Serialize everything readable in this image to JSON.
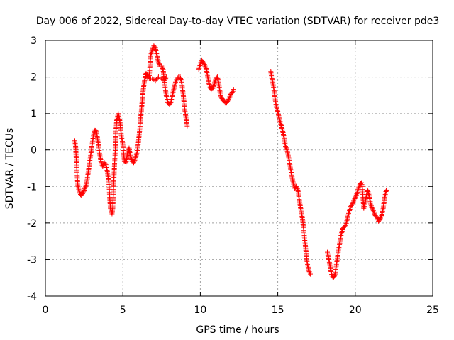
{
  "chart_data": {
    "type": "scatter",
    "title": "Day 006 of 2022, Sidereal Day-to-day VTEC variation (SDTVAR) for receiver pde3",
    "xlabel": "GPS time / hours",
    "ylabel": "SDTVAR / TECUs",
    "xlim": [
      0,
      25
    ],
    "ylim": [
      -4,
      3
    ],
    "xticks": [
      0,
      5,
      10,
      15,
      20,
      25
    ],
    "yticks": [
      -4,
      -3,
      -2,
      -1,
      0,
      1,
      2,
      3
    ],
    "xtick_labels": [
      "0",
      "5",
      "10",
      "15",
      "20",
      "25"
    ],
    "ytick_labels": [
      "-4",
      "-3",
      "-2",
      "-1",
      "0",
      "1",
      "2",
      "3"
    ],
    "grid": true,
    "marker": "+",
    "color": "#ff0000",
    "series": [
      {
        "name": "pde3",
        "segments": [
          [
            [
              1.9,
              0.25
            ],
            [
              1.95,
              0.1
            ],
            [
              2.0,
              -0.3
            ],
            [
              2.05,
              -0.7
            ],
            [
              2.1,
              -1.0
            ],
            [
              2.2,
              -1.15
            ],
            [
              2.3,
              -1.25
            ],
            [
              2.4,
              -1.2
            ],
            [
              2.5,
              -1.1
            ],
            [
              2.6,
              -1.0
            ],
            [
              2.7,
              -0.8
            ],
            [
              2.8,
              -0.5
            ],
            [
              2.9,
              -0.2
            ],
            [
              3.0,
              0.1
            ],
            [
              3.1,
              0.4
            ],
            [
              3.2,
              0.55
            ],
            [
              3.3,
              0.5
            ],
            [
              3.4,
              0.2
            ],
            [
              3.5,
              -0.1
            ],
            [
              3.6,
              -0.35
            ],
            [
              3.7,
              -0.45
            ],
            [
              3.8,
              -0.35
            ],
            [
              3.9,
              -0.4
            ],
            [
              4.0,
              -0.6
            ],
            [
              4.1,
              -0.9
            ],
            [
              4.15,
              -1.3
            ],
            [
              4.2,
              -1.6
            ],
            [
              4.3,
              -1.75
            ],
            [
              4.35,
              -1.6
            ],
            [
              4.4,
              -1.0
            ],
            [
              4.45,
              -0.5
            ],
            [
              4.5,
              -0.1
            ],
            [
              4.55,
              0.5
            ],
            [
              4.6,
              0.8
            ],
            [
              4.7,
              1.0
            ],
            [
              4.8,
              0.8
            ],
            [
              4.9,
              0.4
            ],
            [
              5.0,
              0.15
            ],
            [
              5.05,
              -0.1
            ],
            [
              5.1,
              -0.3
            ],
            [
              5.2,
              -0.35
            ],
            [
              5.3,
              -0.1
            ],
            [
              5.4,
              0.05
            ],
            [
              5.5,
              -0.2
            ],
            [
              5.6,
              -0.3
            ],
            [
              5.7,
              -0.35
            ],
            [
              5.8,
              -0.25
            ],
            [
              5.9,
              -0.1
            ],
            [
              6.0,
              0.2
            ],
            [
              6.1,
              0.6
            ],
            [
              6.2,
              1.1
            ],
            [
              6.3,
              1.6
            ],
            [
              6.4,
              1.9
            ],
            [
              6.5,
              2.1
            ],
            [
              6.6,
              2.05
            ],
            [
              6.7,
              2.0
            ],
            [
              6.75,
              2.3
            ],
            [
              6.8,
              2.6
            ],
            [
              6.9,
              2.75
            ],
            [
              7.0,
              2.85
            ],
            [
              7.1,
              2.8
            ],
            [
              7.2,
              2.6
            ],
            [
              7.3,
              2.4
            ],
            [
              7.4,
              2.3
            ],
            [
              7.5,
              2.3
            ],
            [
              7.6,
              2.2
            ],
            [
              7.7,
              1.8
            ],
            [
              7.8,
              1.5
            ],
            [
              7.9,
              1.3
            ],
            [
              8.0,
              1.25
            ],
            [
              8.1,
              1.3
            ],
            [
              8.2,
              1.5
            ],
            [
              8.3,
              1.7
            ],
            [
              8.4,
              1.85
            ],
            [
              8.5,
              1.95
            ],
            [
              8.6,
              2.0
            ],
            [
              8.7,
              2.0
            ],
            [
              8.8,
              1.85
            ],
            [
              8.9,
              1.5
            ],
            [
              9.0,
              1.1
            ],
            [
              9.1,
              0.8
            ],
            [
              9.15,
              0.65
            ]
          ],
          [
            [
              6.5,
              2.0
            ],
            [
              6.7,
              1.95
            ],
            [
              6.9,
              1.95
            ],
            [
              7.1,
              1.9
            ],
            [
              7.3,
              2.0
            ],
            [
              7.5,
              1.95
            ],
            [
              7.7,
              1.9
            ],
            [
              7.8,
              2.0
            ]
          ],
          [
            [
              9.9,
              2.2
            ],
            [
              10.0,
              2.35
            ],
            [
              10.1,
              2.45
            ],
            [
              10.2,
              2.4
            ],
            [
              10.3,
              2.3
            ],
            [
              10.4,
              2.2
            ],
            [
              10.5,
              1.95
            ],
            [
              10.6,
              1.75
            ],
            [
              10.7,
              1.65
            ],
            [
              10.8,
              1.7
            ],
            [
              10.9,
              1.8
            ],
            [
              11.0,
              1.95
            ],
            [
              11.1,
              2.0
            ],
            [
              11.2,
              1.8
            ],
            [
              11.3,
              1.5
            ],
            [
              11.4,
              1.4
            ],
            [
              11.5,
              1.35
            ],
            [
              11.6,
              1.3
            ],
            [
              11.7,
              1.3
            ],
            [
              11.8,
              1.35
            ],
            [
              11.9,
              1.45
            ],
            [
              12.0,
              1.55
            ],
            [
              12.1,
              1.6
            ],
            [
              12.15,
              1.65
            ]
          ],
          [
            [
              14.55,
              2.15
            ],
            [
              14.6,
              2.0
            ],
            [
              14.7,
              1.8
            ],
            [
              14.8,
              1.5
            ],
            [
              14.9,
              1.2
            ],
            [
              15.0,
              1.05
            ],
            [
              15.1,
              0.85
            ],
            [
              15.2,
              0.7
            ],
            [
              15.3,
              0.55
            ],
            [
              15.4,
              0.35
            ],
            [
              15.5,
              0.1
            ],
            [
              15.6,
              0.0
            ],
            [
              15.7,
              -0.2
            ],
            [
              15.8,
              -0.45
            ],
            [
              15.9,
              -0.7
            ],
            [
              16.0,
              -0.9
            ],
            [
              16.1,
              -1.05
            ],
            [
              16.2,
              -1.0
            ],
            [
              16.3,
              -1.1
            ],
            [
              16.4,
              -1.4
            ],
            [
              16.5,
              -1.65
            ],
            [
              16.6,
              -1.9
            ],
            [
              16.7,
              -2.3
            ],
            [
              16.8,
              -2.7
            ],
            [
              16.9,
              -3.1
            ],
            [
              17.0,
              -3.3
            ],
            [
              17.1,
              -3.4
            ]
          ],
          [
            [
              18.2,
              -2.8
            ],
            [
              18.3,
              -3.0
            ],
            [
              18.4,
              -3.25
            ],
            [
              18.5,
              -3.45
            ],
            [
              18.6,
              -3.5
            ],
            [
              18.7,
              -3.4
            ],
            [
              18.8,
              -3.1
            ],
            [
              18.9,
              -2.8
            ],
            [
              19.0,
              -2.55
            ],
            [
              19.1,
              -2.3
            ],
            [
              19.2,
              -2.15
            ],
            [
              19.3,
              -2.1
            ],
            [
              19.4,
              -2.05
            ],
            [
              19.5,
              -1.85
            ],
            [
              19.6,
              -1.7
            ],
            [
              19.7,
              -1.55
            ],
            [
              19.8,
              -1.5
            ],
            [
              19.9,
              -1.4
            ],
            [
              20.0,
              -1.3
            ],
            [
              20.1,
              -1.2
            ],
            [
              20.2,
              -1.05
            ],
            [
              20.3,
              -0.95
            ],
            [
              20.4,
              -0.9
            ],
            [
              20.45,
              -1.0
            ],
            [
              20.5,
              -1.3
            ],
            [
              20.55,
              -1.6
            ],
            [
              20.6,
              -1.5
            ],
            [
              20.7,
              -1.3
            ],
            [
              20.8,
              -1.1
            ],
            [
              20.9,
              -1.25
            ],
            [
              21.0,
              -1.5
            ],
            [
              21.1,
              -1.6
            ],
            [
              21.2,
              -1.7
            ],
            [
              21.3,
              -1.8
            ],
            [
              21.4,
              -1.85
            ],
            [
              21.5,
              -1.95
            ],
            [
              21.6,
              -1.9
            ],
            [
              21.7,
              -1.8
            ],
            [
              21.8,
              -1.6
            ],
            [
              21.9,
              -1.3
            ],
            [
              22.0,
              -1.1
            ]
          ]
        ]
      }
    ]
  }
}
